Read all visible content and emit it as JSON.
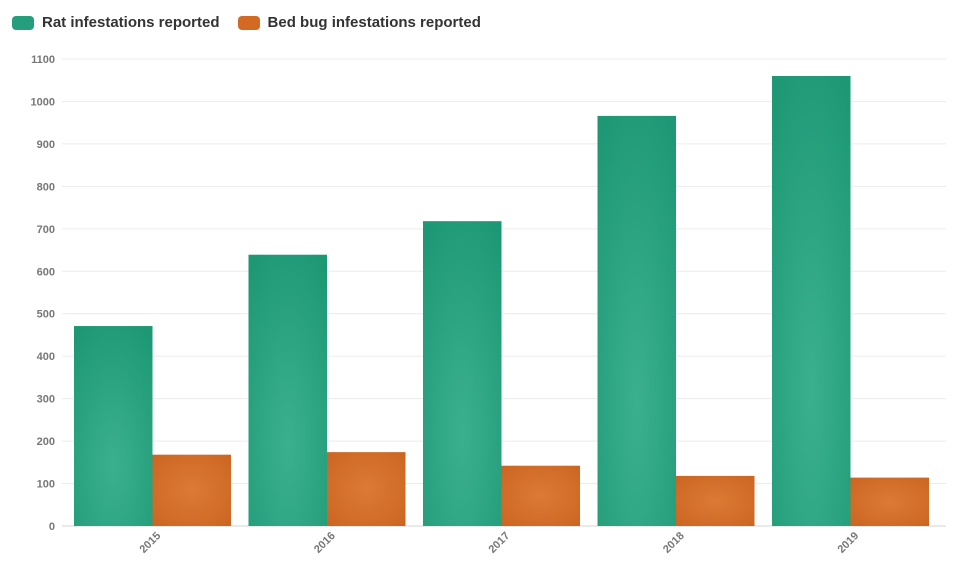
{
  "chart_data": {
    "type": "bar",
    "categories": [
      "2015",
      "2016",
      "2017",
      "2018",
      "2019"
    ],
    "series": [
      {
        "name": "Rat infestations reported",
        "color": "#249e7c",
        "values": [
          471,
          639,
          718,
          966,
          1060
        ]
      },
      {
        "name": "Bed bug infestations reported",
        "color": "#d26a24",
        "values": [
          168,
          174,
          142,
          118,
          114
        ]
      }
    ],
    "ylim": [
      0,
      1100
    ],
    "yticks": [
      0,
      100,
      200,
      300,
      400,
      500,
      600,
      700,
      800,
      900,
      1000,
      1100
    ],
    "grid": true,
    "legend_position": "top-left"
  }
}
